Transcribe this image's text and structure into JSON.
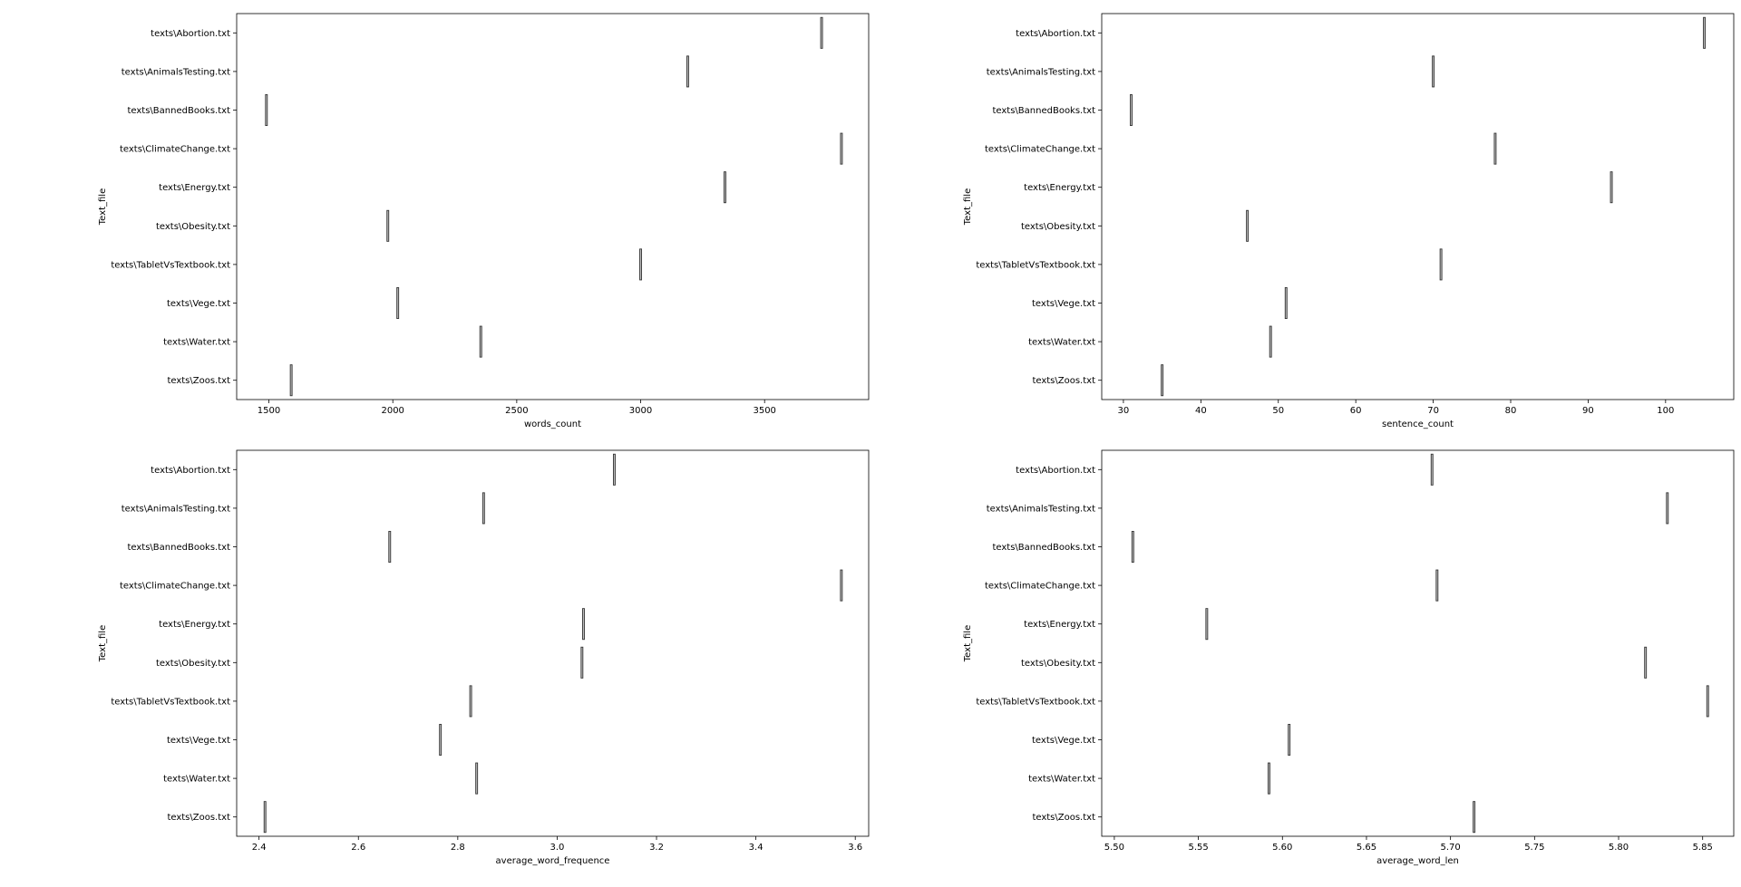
{
  "figure": {
    "colors": {
      "axes": "#000000",
      "tick": "#000000",
      "mark": "#333333",
      "mark_fill": "#bdbdbd",
      "background": "#ffffff"
    }
  },
  "chart_data": [
    {
      "type": "box",
      "orientation": "horizontal",
      "xlabel": "words_count",
      "ylabel": "Text_file",
      "xlim": [
        1370,
        3920
      ],
      "xticks": [
        1500,
        2000,
        2500,
        3000,
        3500
      ],
      "xtick_labels": [
        "1500",
        "2000",
        "2500",
        "3000",
        "3500"
      ],
      "categories": [
        "texts\\Abortion.txt",
        "texts\\AnimalsTesting.txt",
        "texts\\BannedBooks.txt",
        "texts\\ClimateChange.txt",
        "texts\\Energy.txt",
        "texts\\Obesity.txt",
        "texts\\TabletVsTextbook.txt",
        "texts\\Vege.txt",
        "texts\\Water.txt",
        "texts\\Zoos.txt"
      ],
      "values": [
        3730,
        3190,
        1490,
        3810,
        3340,
        1980,
        3000,
        2020,
        2355,
        1590
      ],
      "grid": false
    },
    {
      "type": "box",
      "orientation": "horizontal",
      "xlabel": "sentence_count",
      "ylabel": "Text_file",
      "xlim": [
        27.2,
        108.8
      ],
      "xticks": [
        30,
        40,
        50,
        60,
        70,
        80,
        90,
        100
      ],
      "xtick_labels": [
        "30",
        "40",
        "50",
        "60",
        "70",
        "80",
        "90",
        "100"
      ],
      "categories": [
        "texts\\Abortion.txt",
        "texts\\AnimalsTesting.txt",
        "texts\\BannedBooks.txt",
        "texts\\ClimateChange.txt",
        "texts\\Energy.txt",
        "texts\\Obesity.txt",
        "texts\\TabletVsTextbook.txt",
        "texts\\Vege.txt",
        "texts\\Water.txt",
        "texts\\Zoos.txt"
      ],
      "values": [
        105,
        70,
        31,
        78,
        93,
        46,
        71,
        51,
        49,
        35
      ],
      "grid": false
    },
    {
      "type": "box",
      "orientation": "horizontal",
      "xlabel": "average_word_frequence",
      "ylabel": "Text_file",
      "xlim": [
        2.355,
        3.627
      ],
      "xticks": [
        2.4,
        2.6,
        2.8,
        3.0,
        3.2,
        3.4,
        3.6
      ],
      "xtick_labels": [
        "2.4",
        "2.6",
        "2.8",
        "3.0",
        "3.2",
        "3.4",
        "3.6"
      ],
      "categories": [
        "texts\\Abortion.txt",
        "texts\\AnimalsTesting.txt",
        "texts\\BannedBooks.txt",
        "texts\\ClimateChange.txt",
        "texts\\Energy.txt",
        "texts\\Obesity.txt",
        "texts\\TabletVsTextbook.txt",
        "texts\\Vege.txt",
        "texts\\Water.txt",
        "texts\\Zoos.txt"
      ],
      "values": [
        3.115,
        2.852,
        2.663,
        3.572,
        3.053,
        3.05,
        2.826,
        2.765,
        2.838,
        2.412
      ],
      "grid": false
    },
    {
      "type": "box",
      "orientation": "horizontal",
      "xlabel": "average_word_len",
      "ylabel": "Text_file",
      "xlim": [
        5.4925,
        5.8685
      ],
      "xticks": [
        5.5,
        5.55,
        5.6,
        5.65,
        5.7,
        5.75,
        5.8,
        5.85
      ],
      "xtick_labels": [
        "5.50",
        "5.55",
        "5.60",
        "5.65",
        "5.70",
        "5.75",
        "5.80",
        "5.85"
      ],
      "categories": [
        "texts\\Abortion.txt",
        "texts\\AnimalsTesting.txt",
        "texts\\BannedBooks.txt",
        "texts\\ClimateChange.txt",
        "texts\\Energy.txt",
        "texts\\Obesity.txt",
        "texts\\TabletVsTextbook.txt",
        "texts\\Vege.txt",
        "texts\\Water.txt",
        "texts\\Zoos.txt"
      ],
      "values": [
        5.689,
        5.829,
        5.511,
        5.692,
        5.555,
        5.816,
        5.853,
        5.604,
        5.592,
        5.714
      ],
      "grid": false
    }
  ]
}
